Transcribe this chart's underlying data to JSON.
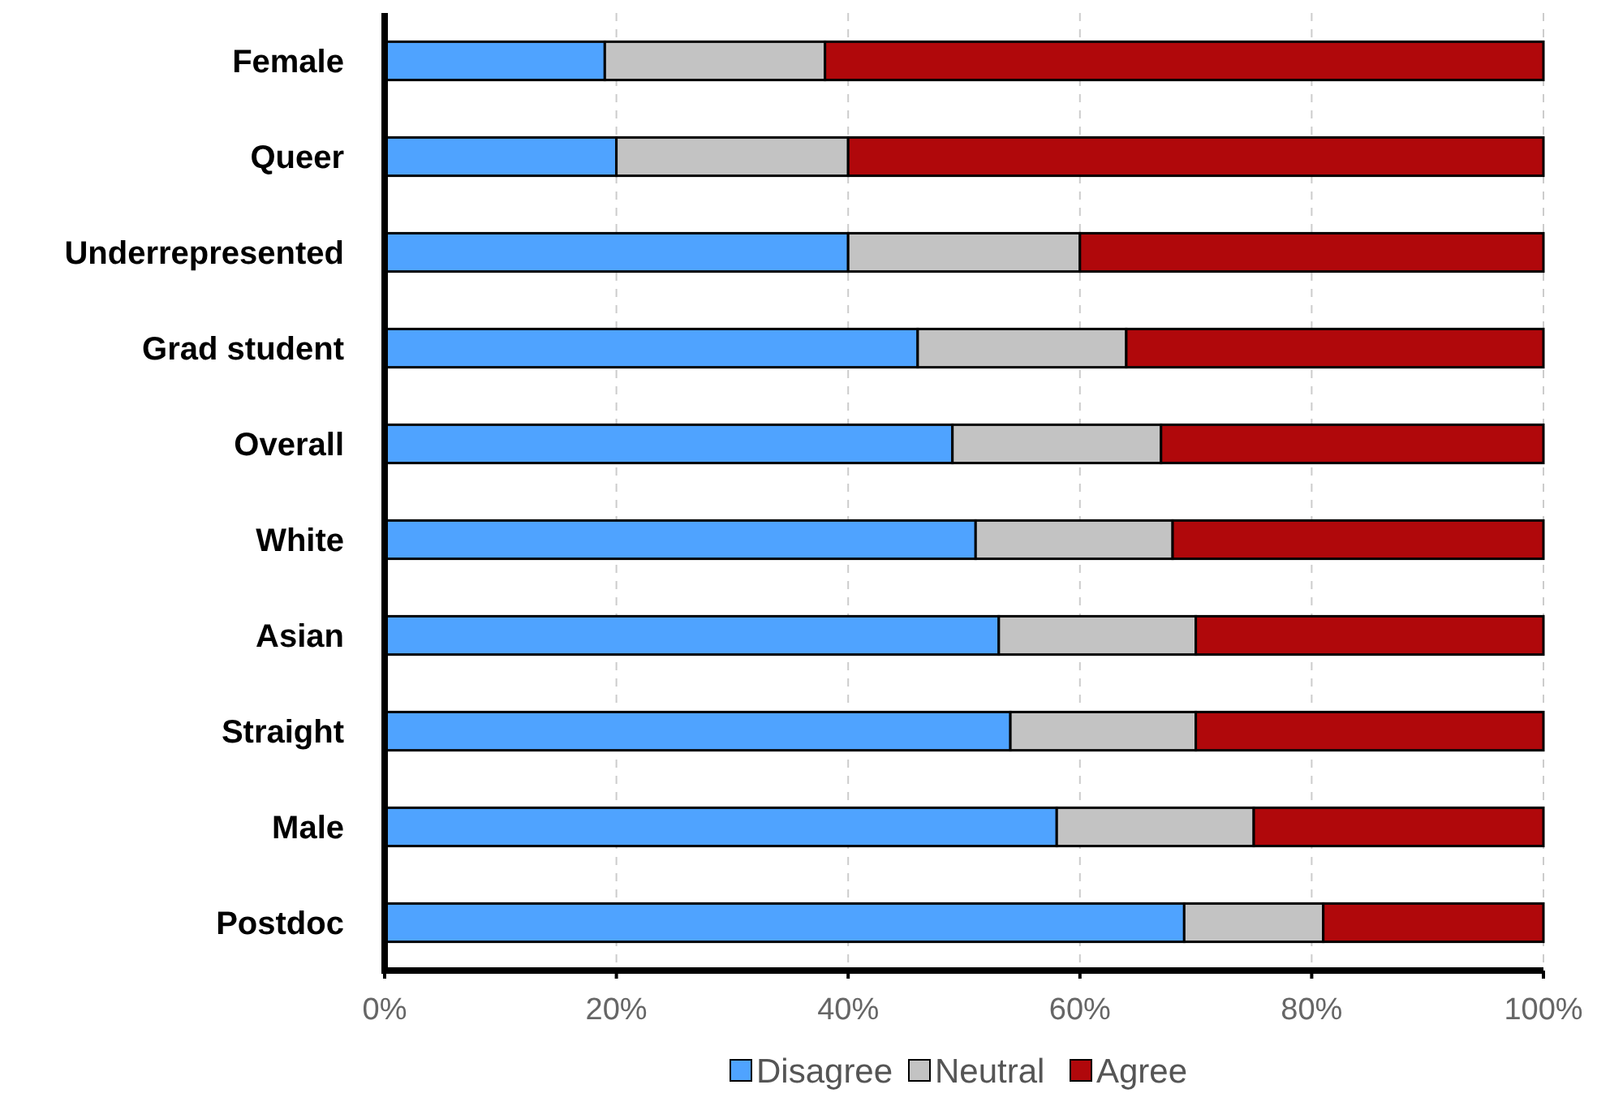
{
  "chart_data": {
    "type": "bar",
    "orientation": "horizontal",
    "stacked": true,
    "categories": [
      "Female",
      "Queer",
      "Underrepresented",
      "Grad student",
      "Overall",
      "White",
      "Asian",
      "Straight",
      "Male",
      "Postdoc"
    ],
    "series": [
      {
        "name": "Disagree",
        "color": "#4fa3ff",
        "values": [
          19,
          20,
          40,
          46,
          49,
          51,
          53,
          54,
          58,
          69
        ]
      },
      {
        "name": "Neutral",
        "color": "#c3c3c3",
        "values": [
          19,
          20,
          20,
          18,
          18,
          17,
          17,
          16,
          17,
          12
        ]
      },
      {
        "name": "Agree",
        "color": "#b0080b",
        "values": [
          62,
          60,
          40,
          36,
          33,
          32,
          30,
          30,
          25,
          19
        ]
      }
    ],
    "xlim": [
      0,
      100
    ],
    "xticks": [
      {
        "value": 0,
        "label": "0%"
      },
      {
        "value": 20,
        "label": "20%"
      },
      {
        "value": 40,
        "label": "40%"
      },
      {
        "value": 60,
        "label": "60%"
      },
      {
        "value": 80,
        "label": "80%"
      },
      {
        "value": 100,
        "label": "100%"
      }
    ],
    "grid": "x",
    "legend": "bottom"
  }
}
